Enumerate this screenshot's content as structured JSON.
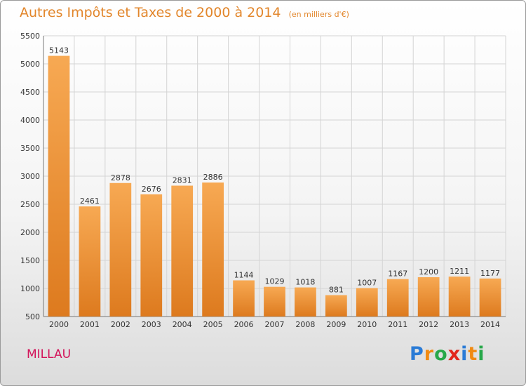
{
  "header": {
    "title": "Autres Impôts et Taxes de 2000 à 2014",
    "unit": "(en milliers d'€)"
  },
  "footer": {
    "city": "MILLAU",
    "brand_letters": [
      "P",
      "r",
      "o",
      "x",
      "i",
      "t",
      "i"
    ],
    "brand_colors": [
      "#2a7bd6",
      "#f08a12",
      "#28a84a",
      "#e2261c",
      "#2a7bd6",
      "#f08a12",
      "#28a84a"
    ]
  },
  "colors": {
    "title": "#e2862b",
    "city": "#d3145a",
    "bar_light": "#f7a953",
    "bar_dark": "#dd7a1e",
    "grid": "#d4d4d4"
  },
  "chart_data": {
    "type": "bar",
    "title": "Autres Impôts et Taxes de 2000 à 2014",
    "subtitle": "(en milliers d'€)",
    "xlabel": "",
    "ylabel": "",
    "categories": [
      "2000",
      "2001",
      "2002",
      "2003",
      "2004",
      "2005",
      "2006",
      "2007",
      "2008",
      "2009",
      "2010",
      "2011",
      "2012",
      "2013",
      "2014"
    ],
    "values": [
      5143,
      2461,
      2878,
      2676,
      2831,
      2886,
      1144,
      1029,
      1018,
      881,
      1007,
      1167,
      1200,
      1211,
      1177
    ],
    "ylim": [
      500,
      5500
    ],
    "yticks": [
      500,
      1000,
      1500,
      2000,
      2500,
      3000,
      3500,
      4000,
      4500,
      5000,
      5500
    ],
    "grid": true,
    "legend": "none"
  }
}
